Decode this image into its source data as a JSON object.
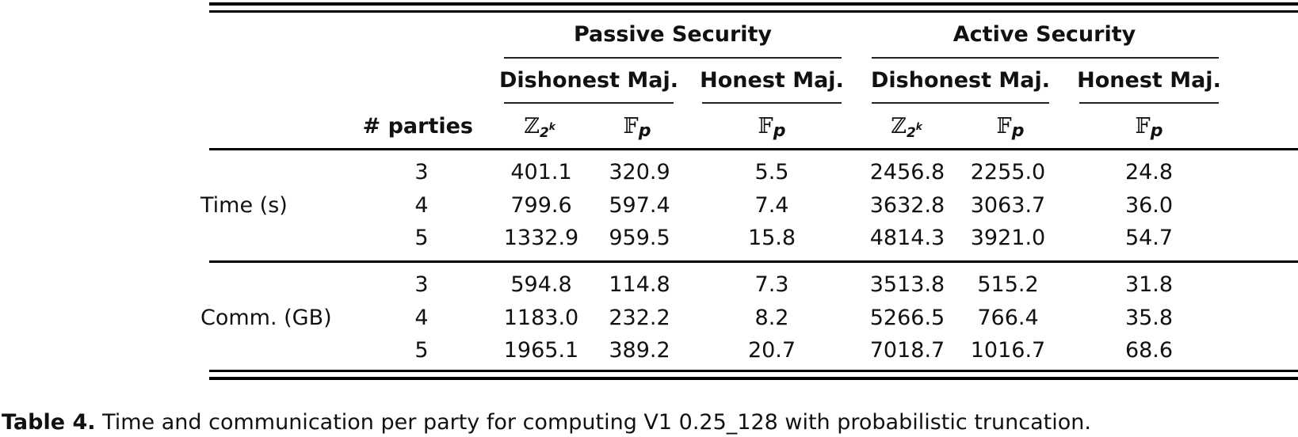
{
  "table": {
    "group_headers": [
      "Passive Security",
      "Active Security"
    ],
    "sub_headers": [
      "Dishonest Maj.",
      "Honest Maj.",
      "Dishonest Maj.",
      "Honest Maj."
    ],
    "parties_header": "# parties",
    "ring_labels": [
      "ℤ",
      "𝔽",
      "𝔽",
      "ℤ",
      "𝔽",
      "𝔽"
    ],
    "ring_subscripts": [
      "2",
      "p",
      "p",
      "2",
      "p",
      "p"
    ],
    "ring_exponents": [
      "k",
      "",
      "",
      "k",
      "",
      ""
    ],
    "sections": [
      {
        "label": "Time (s)",
        "rows": [
          {
            "parties": "3",
            "values": [
              "401.1",
              "320.9",
              "5.5",
              "2456.8",
              "2255.0",
              "24.8"
            ]
          },
          {
            "parties": "4",
            "values": [
              "799.6",
              "597.4",
              "7.4",
              "3632.8",
              "3063.7",
              "36.0"
            ]
          },
          {
            "parties": "5",
            "values": [
              "1332.9",
              "959.5",
              "15.8",
              "4814.3",
              "3921.0",
              "54.7"
            ]
          }
        ]
      },
      {
        "label": "Comm. (GB)",
        "rows": [
          {
            "parties": "3",
            "values": [
              "594.8",
              "114.8",
              "7.3",
              "3513.8",
              "515.2",
              "31.8"
            ]
          },
          {
            "parties": "4",
            "values": [
              "1183.0",
              "232.2",
              "8.2",
              "5266.5",
              "766.4",
              "35.8"
            ]
          },
          {
            "parties": "5",
            "values": [
              "1965.1",
              "389.2",
              "20.7",
              "7018.7",
              "1016.7",
              "68.6"
            ]
          }
        ]
      }
    ]
  },
  "caption": {
    "label": "Table 4.",
    "text": " Time and communication per party for computing V1 0.25_128 with probabilistic truncation."
  }
}
